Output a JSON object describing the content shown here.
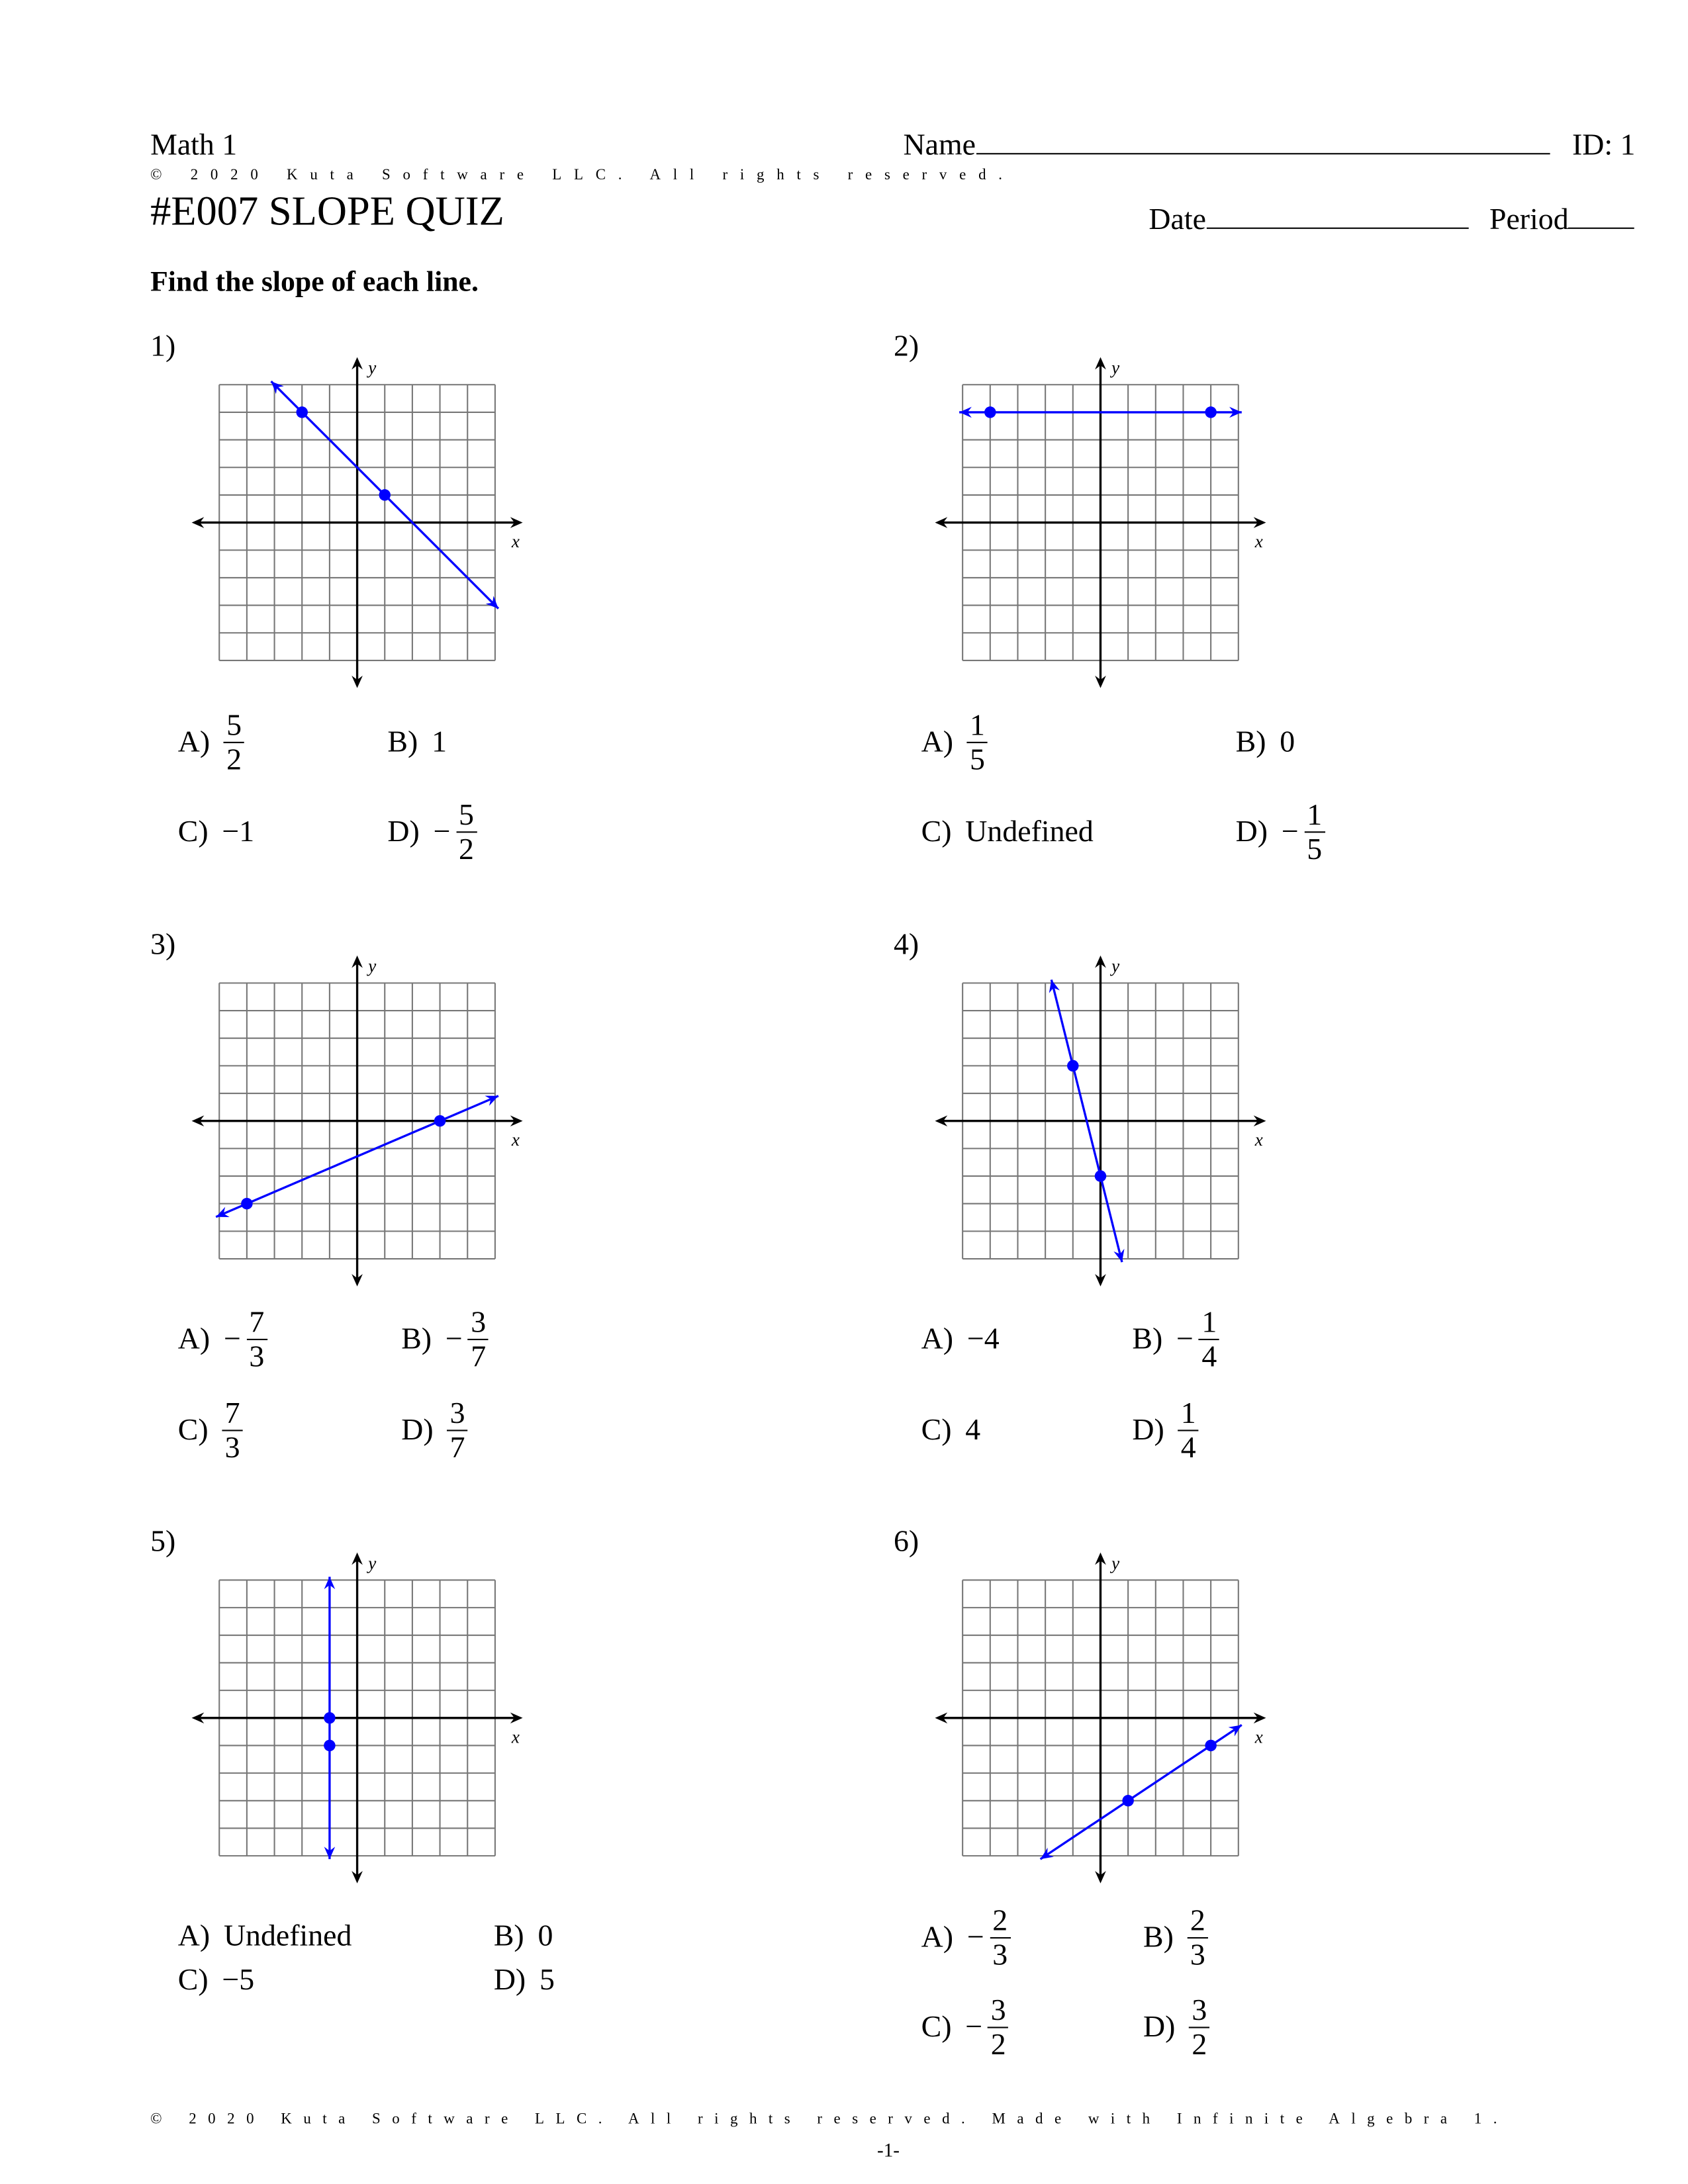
{
  "header": {
    "course": "Math 1",
    "name_label": "Name",
    "id_label": "ID: 1",
    "copyright": "© 2020 Kuta Software LLC. All rights reserved.",
    "title": "#E007 SLOPE QUIZ",
    "date_label": "Date",
    "period_label": "Period"
  },
  "instructions": "Find the slope of each line.",
  "graph_style": {
    "line_color": "#0000ff",
    "grid_color": "#777777",
    "axis_color": "#000000",
    "x_range": [
      -5,
      5
    ],
    "y_range": [
      -5,
      5
    ],
    "x_axis_label": "x",
    "y_axis_label": "y"
  },
  "questions": [
    {
      "number": "1)",
      "points": [
        [
          -2,
          4
        ],
        [
          1,
          1
        ]
      ],
      "choices": [
        {
          "letter": "A)",
          "sign": "",
          "num": "5",
          "den": "2"
        },
        {
          "letter": "B)",
          "text": "1"
        },
        {
          "letter": "C)",
          "text": "−1"
        },
        {
          "letter": "D)",
          "sign": "−",
          "num": "5",
          "den": "2"
        }
      ]
    },
    {
      "number": "2)",
      "points": [
        [
          -4,
          4
        ],
        [
          4,
          4
        ]
      ],
      "choices": [
        {
          "letter": "A)",
          "sign": "",
          "num": "1",
          "den": "5"
        },
        {
          "letter": "B)",
          "text": "0"
        },
        {
          "letter": "C)",
          "text": "Undefined"
        },
        {
          "letter": "D)",
          "sign": "−",
          "num": "1",
          "den": "5"
        }
      ]
    },
    {
      "number": "3)",
      "points": [
        [
          -4,
          -3
        ],
        [
          3,
          0
        ]
      ],
      "choices": [
        {
          "letter": "A)",
          "sign": "−",
          "num": "7",
          "den": "3"
        },
        {
          "letter": "B)",
          "sign": "−",
          "num": "3",
          "den": "7"
        },
        {
          "letter": "C)",
          "sign": "",
          "num": "7",
          "den": "3"
        },
        {
          "letter": "D)",
          "sign": "",
          "num": "3",
          "den": "7"
        }
      ]
    },
    {
      "number": "4)",
      "points": [
        [
          -1,
          2
        ],
        [
          0,
          -2
        ]
      ],
      "choices": [
        {
          "letter": "A)",
          "text": "−4"
        },
        {
          "letter": "B)",
          "sign": "−",
          "num": "1",
          "den": "4"
        },
        {
          "letter": "C)",
          "text": "4"
        },
        {
          "letter": "D)",
          "sign": "",
          "num": "1",
          "den": "4"
        }
      ]
    },
    {
      "number": "5)",
      "points": [
        [
          -1,
          0
        ],
        [
          -1,
          -1
        ]
      ],
      "choices": [
        {
          "letter": "A)",
          "text": "Undefined"
        },
        {
          "letter": "B)",
          "text": "0"
        },
        {
          "letter": "C)",
          "text": "−5"
        },
        {
          "letter": "D)",
          "text": "5"
        }
      ]
    },
    {
      "number": "6)",
      "points": [
        [
          1,
          -3
        ],
        [
          4,
          -1
        ]
      ],
      "choices": [
        {
          "letter": "A)",
          "sign": "−",
          "num": "2",
          "den": "3"
        },
        {
          "letter": "B)",
          "sign": "",
          "num": "2",
          "den": "3"
        },
        {
          "letter": "C)",
          "sign": "−",
          "num": "3",
          "den": "2"
        },
        {
          "letter": "D)",
          "sign": "",
          "num": "3",
          "den": "2"
        }
      ]
    }
  ],
  "footer": {
    "copyright": "© 2020 Kuta Software LLC. All rights reserved. Made with Infinite Algebra 1.",
    "page_number": "-1-"
  }
}
